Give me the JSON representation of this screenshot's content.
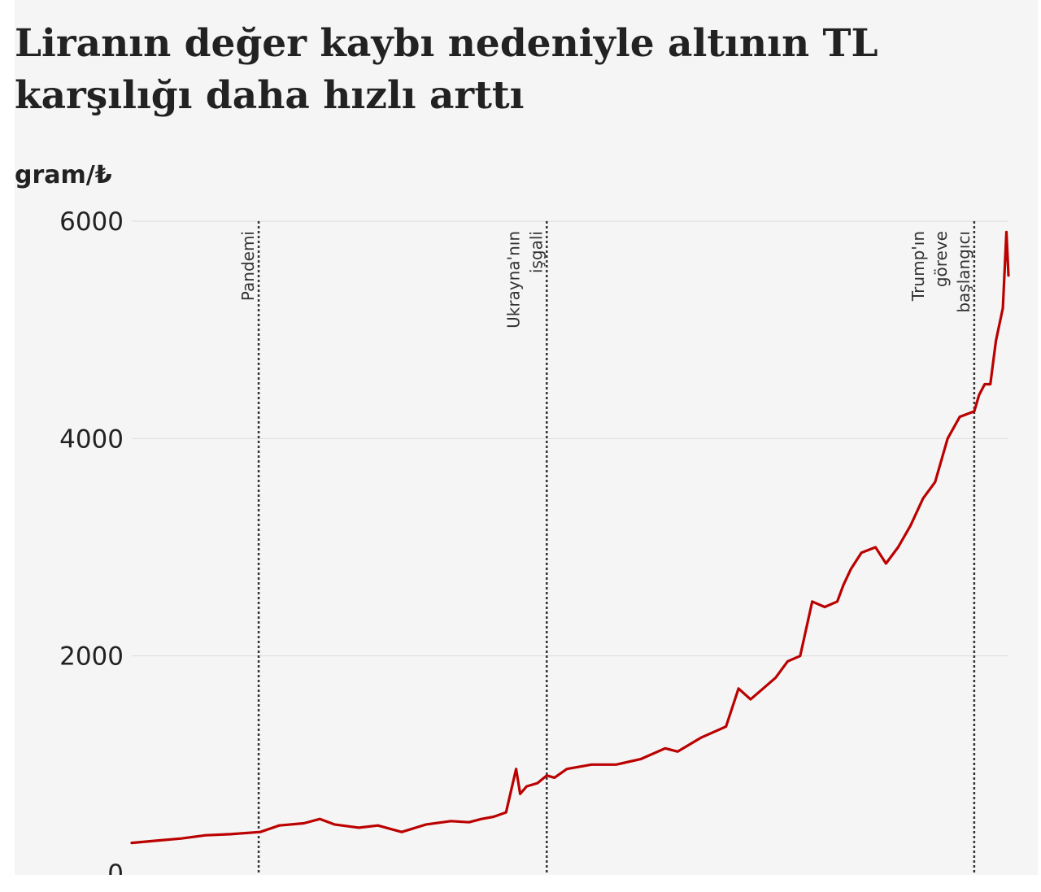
{
  "chart_data": {
    "type": "line",
    "title": "Liranın değer kaybı nedeniyle altının TL karşılığı daha hızlı arttı",
    "ylabel": "gram/₺",
    "ylim": [
      0,
      6000
    ],
    "yticks": [
      0,
      2000,
      4000,
      6000
    ],
    "ytick_labels": [
      "0",
      "2000",
      "4000",
      "6000"
    ],
    "grid": true,
    "xlim": [
      "2019-05-01",
      "2025-04-15"
    ],
    "series": [
      {
        "color": "#bb0000",
        "x": [
          "2019-05-01",
          "2019-07-01",
          "2019-09-01",
          "2019-11-01",
          "2020-01-01",
          "2020-03-15",
          "2020-05-01",
          "2020-07-01",
          "2020-08-10",
          "2020-09-15",
          "2020-11-15",
          "2021-01-01",
          "2021-03-01",
          "2021-05-01",
          "2021-07-01",
          "2021-08-15",
          "2021-09-15",
          "2021-10-15",
          "2021-11-15",
          "2021-12-10",
          "2021-12-20",
          "2022-01-05",
          "2022-02-01",
          "2022-02-24",
          "2022-03-15",
          "2022-04-15",
          "2022-06-15",
          "2022-08-15",
          "2022-10-15",
          "2022-12-15",
          "2023-01-15",
          "2023-03-15",
          "2023-05-15",
          "2023-06-15",
          "2023-07-15",
          "2023-08-15",
          "2023-09-15",
          "2023-10-15",
          "2023-11-15",
          "2023-12-15",
          "2024-01-15",
          "2024-02-15",
          "2024-03-01",
          "2024-03-20",
          "2024-04-15",
          "2024-05-20",
          "2024-06-15",
          "2024-07-15",
          "2024-08-15",
          "2024-09-15",
          "2024-10-15",
          "2024-11-15",
          "2024-12-15",
          "2025-01-20",
          "2025-02-01",
          "2025-02-15",
          "2025-03-01",
          "2025-03-15",
          "2025-04-01",
          "2025-04-10",
          "2025-04-15"
        ],
        "values": [
          280,
          300,
          320,
          350,
          360,
          380,
          440,
          460,
          500,
          450,
          420,
          440,
          380,
          450,
          480,
          470,
          500,
          520,
          560,
          960,
          730,
          800,
          830,
          900,
          880,
          960,
          1000,
          1000,
          1050,
          1150,
          1120,
          1250,
          1350,
          1700,
          1600,
          1700,
          1800,
          1950,
          2000,
          2500,
          2450,
          2500,
          2650,
          2800,
          2950,
          3000,
          2850,
          3000,
          3200,
          3450,
          3600,
          4000,
          4200,
          4250,
          4400,
          4500,
          4500,
          4900,
          5200,
          5900,
          5500
        ]
      }
    ],
    "annotations": [
      {
        "x": "2020-03-11",
        "label": "Pandemi"
      },
      {
        "x": "2022-02-24",
        "label": "Ukrayna'nın işgali"
      },
      {
        "x": "2025-01-20",
        "label": "Trump'ın göreve başlangıcı"
      }
    ]
  }
}
